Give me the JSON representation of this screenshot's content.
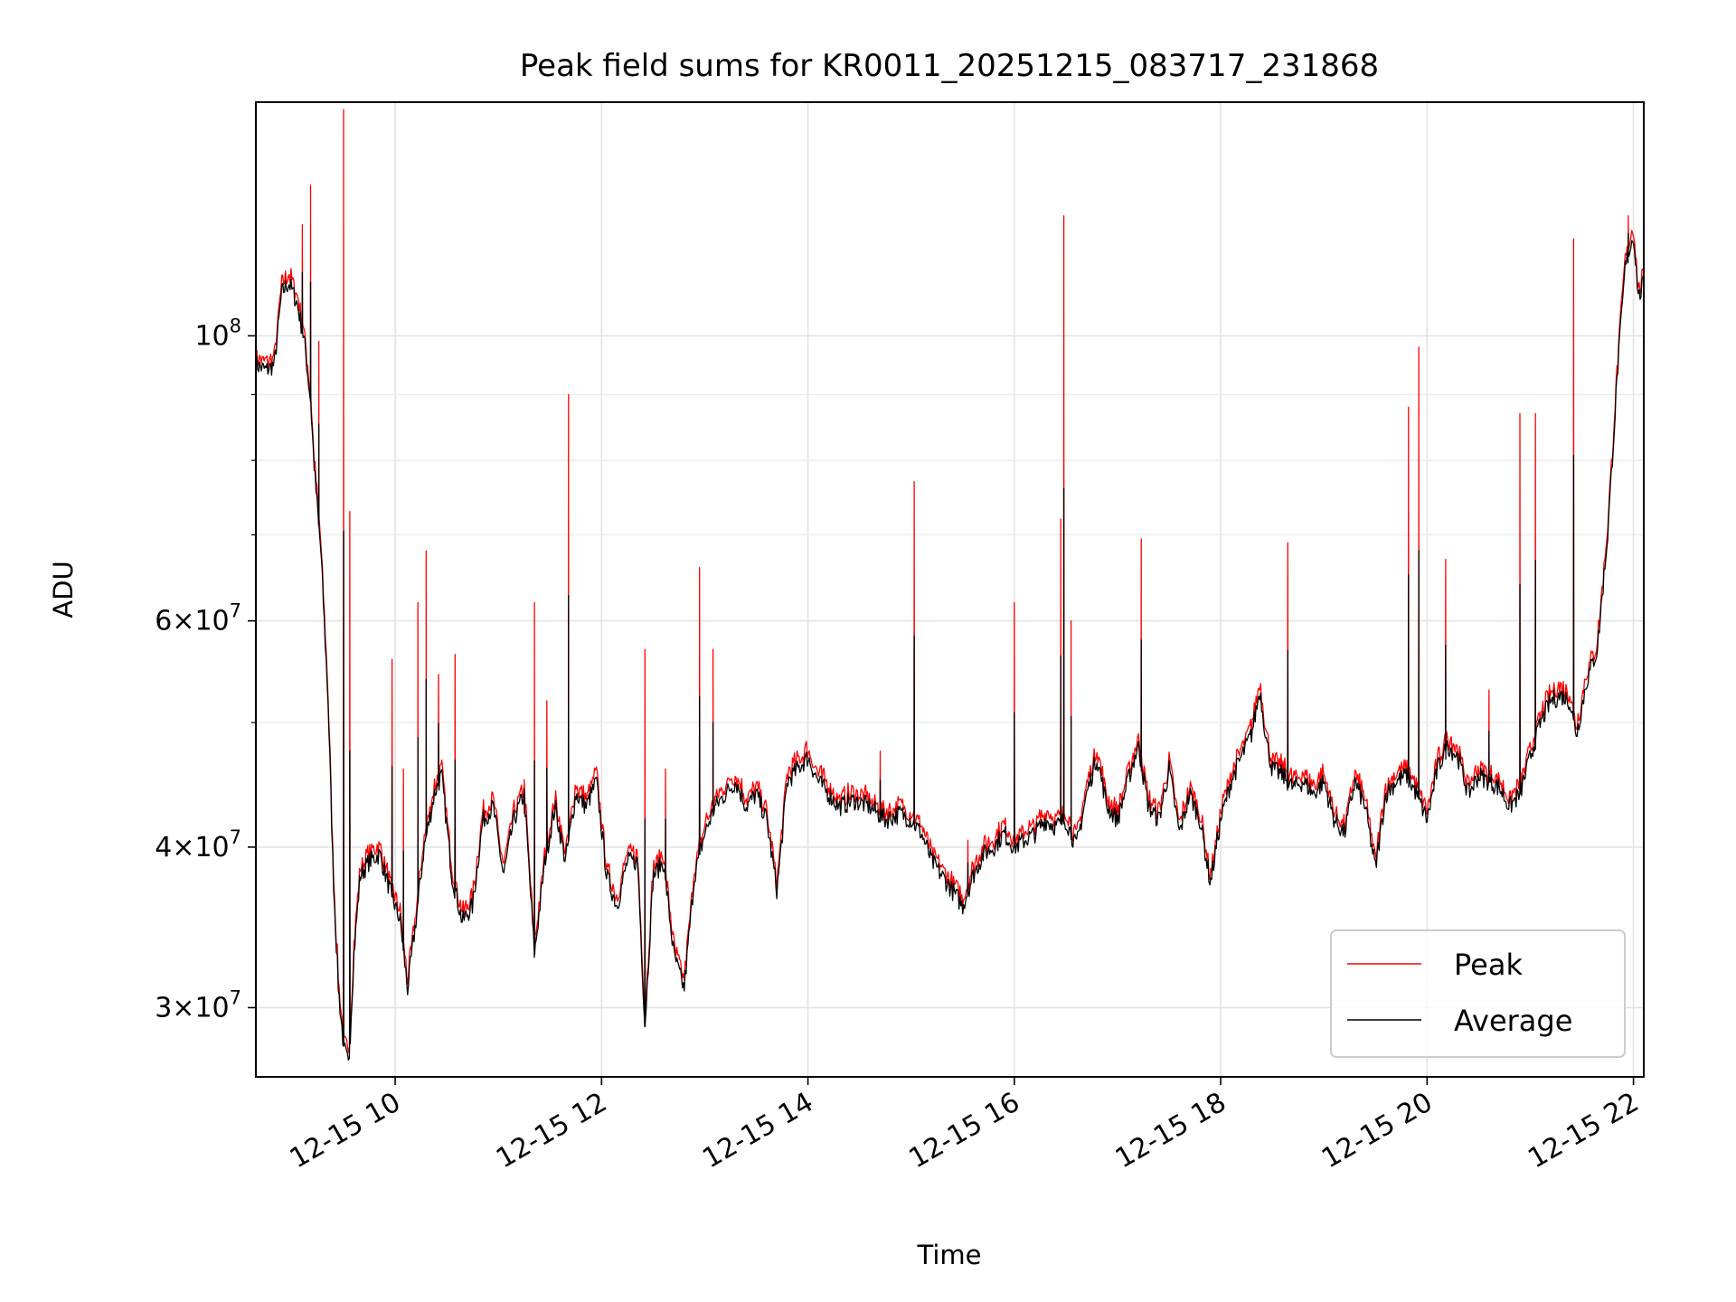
{
  "chart_data": {
    "type": "line",
    "title": "Peak field sums for KR0011_20251215_083717_231868",
    "xlabel": "Time",
    "ylabel": "ADU",
    "yscale": "log",
    "xlim": [
      8.65,
      22.1
    ],
    "ylim": [
      26500000,
      152000000
    ],
    "grid": true,
    "x_ticks": [
      {
        "value": 10,
        "label": "12-15 10"
      },
      {
        "value": 12,
        "label": "12-15 12"
      },
      {
        "value": 14,
        "label": "12-15 14"
      },
      {
        "value": 16,
        "label": "12-15 16"
      },
      {
        "value": 18,
        "label": "12-15 18"
      },
      {
        "value": 20,
        "label": "12-15 20"
      },
      {
        "value": 22,
        "label": "12-15 22"
      }
    ],
    "y_ticks": [
      {
        "value": 30000000,
        "mant": "3",
        "exp": "7"
      },
      {
        "value": 40000000,
        "mant": "4",
        "exp": "7"
      },
      {
        "value": 60000000,
        "mant": "6",
        "exp": "7"
      },
      {
        "value": 100000000,
        "mant": "",
        "exp": "8"
      }
    ],
    "y_minor_ticks": [
      50000000,
      70000000,
      80000000,
      90000000
    ],
    "legend": {
      "position": "lower-right",
      "entries": [
        {
          "label": "Peak",
          "color": "#ff0000"
        },
        {
          "label": "Average",
          "color": "#000000"
        }
      ]
    },
    "series": [
      {
        "name": "Average",
        "color": "#000000",
        "points": [
          [
            8.65,
            95000000
          ],
          [
            8.75,
            94000000
          ],
          [
            8.83,
            95000000
          ],
          [
            8.9,
            108000000
          ],
          [
            8.97,
            110000000
          ],
          [
            9.05,
            106000000
          ],
          [
            9.12,
            99000000
          ],
          [
            9.18,
            89000000
          ],
          [
            9.22,
            78000000
          ],
          [
            9.28,
            68000000
          ],
          [
            9.35,
            52000000
          ],
          [
            9.4,
            38000000
          ],
          [
            9.45,
            31000000
          ],
          [
            9.5,
            28000000
          ],
          [
            9.55,
            27000000
          ],
          [
            9.6,
            33000000
          ],
          [
            9.66,
            38000000
          ],
          [
            9.75,
            39000000
          ],
          [
            9.85,
            39500000
          ],
          [
            9.95,
            37000000
          ],
          [
            10.05,
            35000000
          ],
          [
            10.12,
            31000000
          ],
          [
            10.2,
            35000000
          ],
          [
            10.28,
            40000000
          ],
          [
            10.38,
            44000000
          ],
          [
            10.45,
            45500000
          ],
          [
            10.55,
            38000000
          ],
          [
            10.65,
            35000000
          ],
          [
            10.75,
            36000000
          ],
          [
            10.85,
            42000000
          ],
          [
            10.95,
            43000000
          ],
          [
            11.05,
            38000000
          ],
          [
            11.15,
            42000000
          ],
          [
            11.25,
            44000000
          ],
          [
            11.35,
            33000000
          ],
          [
            11.45,
            39000000
          ],
          [
            11.55,
            43000000
          ],
          [
            11.65,
            39000000
          ],
          [
            11.75,
            44000000
          ],
          [
            11.85,
            43000000
          ],
          [
            11.95,
            45000000
          ],
          [
            12.05,
            38000000
          ],
          [
            12.15,
            36000000
          ],
          [
            12.25,
            39000000
          ],
          [
            12.35,
            39000000
          ],
          [
            12.42,
            29000000
          ],
          [
            12.5,
            38000000
          ],
          [
            12.6,
            39000000
          ],
          [
            12.7,
            33000000
          ],
          [
            12.8,
            31000000
          ],
          [
            12.9,
            38000000
          ],
          [
            13.0,
            41000000
          ],
          [
            13.1,
            43000000
          ],
          [
            13.2,
            44000000
          ],
          [
            13.3,
            45000000
          ],
          [
            13.4,
            43000000
          ],
          [
            13.5,
            44000000
          ],
          [
            13.6,
            42000000
          ],
          [
            13.7,
            37000000
          ],
          [
            13.8,
            45000000
          ],
          [
            13.9,
            46000000
          ],
          [
            14.0,
            47000000
          ],
          [
            14.1,
            45000000
          ],
          [
            14.2,
            44000000
          ],
          [
            14.3,
            43000000
          ],
          [
            14.45,
            43500000
          ],
          [
            14.6,
            43000000
          ],
          [
            14.75,
            42000000
          ],
          [
            14.9,
            42500000
          ],
          [
            15.0,
            42000000
          ],
          [
            15.1,
            41000000
          ],
          [
            15.2,
            39000000
          ],
          [
            15.3,
            38000000
          ],
          [
            15.4,
            37000000
          ],
          [
            15.5,
            36000000
          ],
          [
            15.6,
            38000000
          ],
          [
            15.7,
            39500000
          ],
          [
            15.8,
            40000000
          ],
          [
            15.9,
            41000000
          ],
          [
            16.0,
            40000000
          ],
          [
            16.1,
            40500000
          ],
          [
            16.2,
            41000000
          ],
          [
            16.3,
            42000000
          ],
          [
            16.4,
            41500000
          ],
          [
            16.5,
            42000000
          ],
          [
            16.6,
            40000000
          ],
          [
            16.7,
            44000000
          ],
          [
            16.8,
            47000000
          ],
          [
            16.9,
            43000000
          ],
          [
            17.0,
            42000000
          ],
          [
            17.1,
            45000000
          ],
          [
            17.2,
            48000000
          ],
          [
            17.3,
            43000000
          ],
          [
            17.4,
            42000000
          ],
          [
            17.5,
            46000000
          ],
          [
            17.6,
            41000000
          ],
          [
            17.7,
            44000000
          ],
          [
            17.8,
            42000000
          ],
          [
            17.9,
            37500000
          ],
          [
            18.0,
            42000000
          ],
          [
            18.1,
            45000000
          ],
          [
            18.2,
            47000000
          ],
          [
            18.3,
            49000000
          ],
          [
            18.38,
            53000000
          ],
          [
            18.45,
            48000000
          ],
          [
            18.5,
            46000000
          ],
          [
            18.6,
            45500000
          ],
          [
            18.7,
            44500000
          ],
          [
            18.8,
            45000000
          ],
          [
            18.9,
            44000000
          ],
          [
            19.0,
            45000000
          ],
          [
            19.1,
            42000000
          ],
          [
            19.2,
            41000000
          ],
          [
            19.3,
            45000000
          ],
          [
            19.4,
            43000000
          ],
          [
            19.5,
            38500000
          ],
          [
            19.6,
            44000000
          ],
          [
            19.7,
            45000000
          ],
          [
            19.8,
            45500000
          ],
          [
            19.9,
            44000000
          ],
          [
            20.0,
            42000000
          ],
          [
            20.1,
            46000000
          ],
          [
            20.2,
            48000000
          ],
          [
            20.3,
            47000000
          ],
          [
            20.4,
            44000000
          ],
          [
            20.5,
            45500000
          ],
          [
            20.6,
            45000000
          ],
          [
            20.7,
            44500000
          ],
          [
            20.8,
            43000000
          ],
          [
            20.9,
            44000000
          ],
          [
            21.0,
            47000000
          ],
          [
            21.1,
            50000000
          ],
          [
            21.2,
            52000000
          ],
          [
            21.3,
            52500000
          ],
          [
            21.38,
            52000000
          ],
          [
            21.45,
            49000000
          ],
          [
            21.55,
            54000000
          ],
          [
            21.65,
            57000000
          ],
          [
            21.75,
            70000000
          ],
          [
            21.85,
            95000000
          ],
          [
            21.92,
            113000000
          ],
          [
            22.0,
            120000000
          ],
          [
            22.05,
            107000000
          ],
          [
            22.1,
            110000000
          ]
        ]
      },
      {
        "name": "Peak",
        "color": "#ff0000",
        "offset": 1.015,
        "spikes": [
          [
            9.1,
            122000000
          ],
          [
            9.18,
            131000000
          ],
          [
            9.26,
            99000000
          ],
          [
            9.5,
            150000000
          ],
          [
            9.56,
            73000000
          ],
          [
            9.97,
            56000000
          ],
          [
            10.08,
            46000000
          ],
          [
            10.22,
            62000000
          ],
          [
            10.3,
            68000000
          ],
          [
            10.42,
            54500000
          ],
          [
            10.58,
            56500000
          ],
          [
            11.25,
            42500000
          ],
          [
            11.35,
            62000000
          ],
          [
            11.47,
            52000000
          ],
          [
            11.68,
            90000000
          ],
          [
            12.42,
            57000000
          ],
          [
            12.62,
            46000000
          ],
          [
            12.95,
            66000000
          ],
          [
            13.08,
            57000000
          ],
          [
            14.7,
            47500000
          ],
          [
            15.03,
            77000000
          ],
          [
            15.55,
            40500000
          ],
          [
            16.0,
            62000000
          ],
          [
            16.45,
            72000000
          ],
          [
            16.48,
            124000000
          ],
          [
            16.55,
            60000000
          ],
          [
            17.23,
            69500000
          ],
          [
            18.65,
            69000000
          ],
          [
            19.82,
            88000000
          ],
          [
            19.92,
            98000000
          ],
          [
            20.18,
            67000000
          ],
          [
            20.6,
            53000000
          ],
          [
            20.9,
            87000000
          ],
          [
            21.05,
            87000000
          ],
          [
            21.42,
            119000000
          ],
          [
            21.95,
            124000000
          ]
        ]
      }
    ]
  }
}
